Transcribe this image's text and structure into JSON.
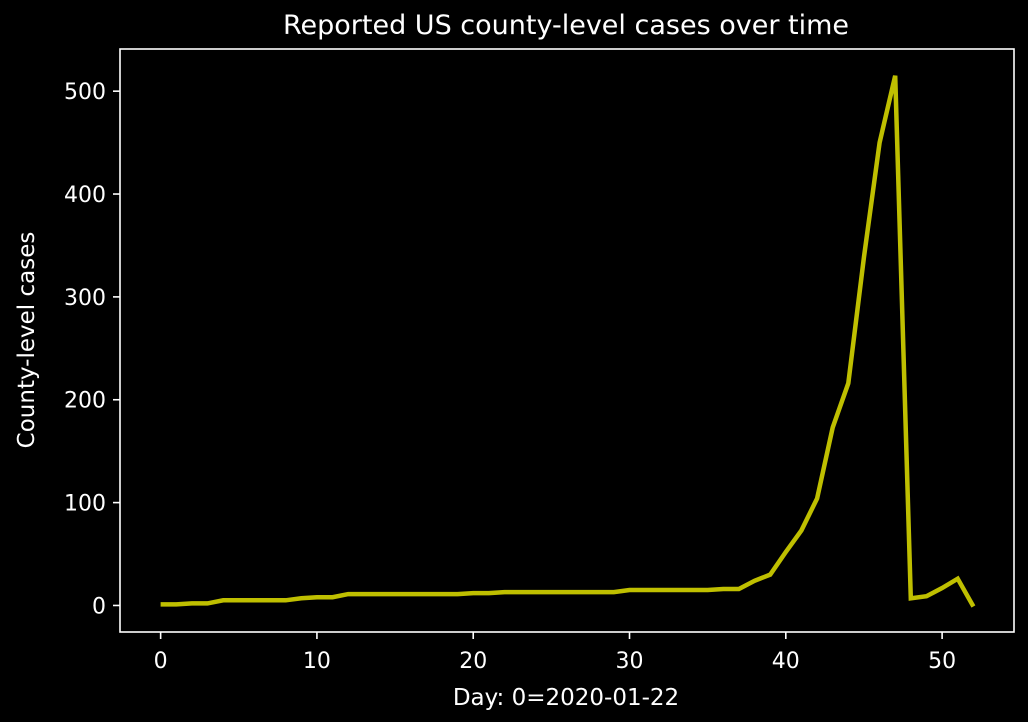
{
  "chart_data": {
    "type": "line",
    "title": "Reported US county-level cases over time",
    "xlabel": "Day: 0=2020-01-22",
    "ylabel": "County-level cases",
    "xlim": [
      -2.6,
      54.6
    ],
    "ylim": [
      -25.8,
      541
    ],
    "xticks": [
      0,
      10,
      20,
      30,
      40,
      50
    ],
    "yticks": [
      0,
      100,
      200,
      300,
      400,
      500
    ],
    "grid": false,
    "background": "#000000",
    "axis_color": "#ffffff",
    "series": [
      {
        "color": "#bfbf00",
        "x": [
          0,
          1,
          2,
          3,
          4,
          5,
          6,
          7,
          8,
          9,
          10,
          11,
          12,
          13,
          14,
          15,
          16,
          17,
          18,
          19,
          20,
          21,
          22,
          23,
          24,
          25,
          26,
          27,
          28,
          29,
          30,
          31,
          32,
          33,
          34,
          35,
          36,
          37,
          38,
          39,
          40,
          41,
          42,
          43,
          44,
          45,
          46,
          47,
          48,
          49,
          50,
          51,
          52
        ],
        "y": [
          1,
          1,
          2,
          2,
          5,
          5,
          5,
          5,
          5,
          7,
          8,
          8,
          11,
          11,
          11,
          11,
          11,
          11,
          11,
          11,
          12,
          12,
          13,
          13,
          13,
          13,
          13,
          13,
          13,
          13,
          15,
          15,
          15,
          15,
          15,
          15,
          16,
          16,
          24,
          30,
          52,
          73,
          104,
          173,
          216,
          339,
          450,
          515,
          7,
          9,
          17,
          26,
          -1
        ]
      }
    ]
  }
}
